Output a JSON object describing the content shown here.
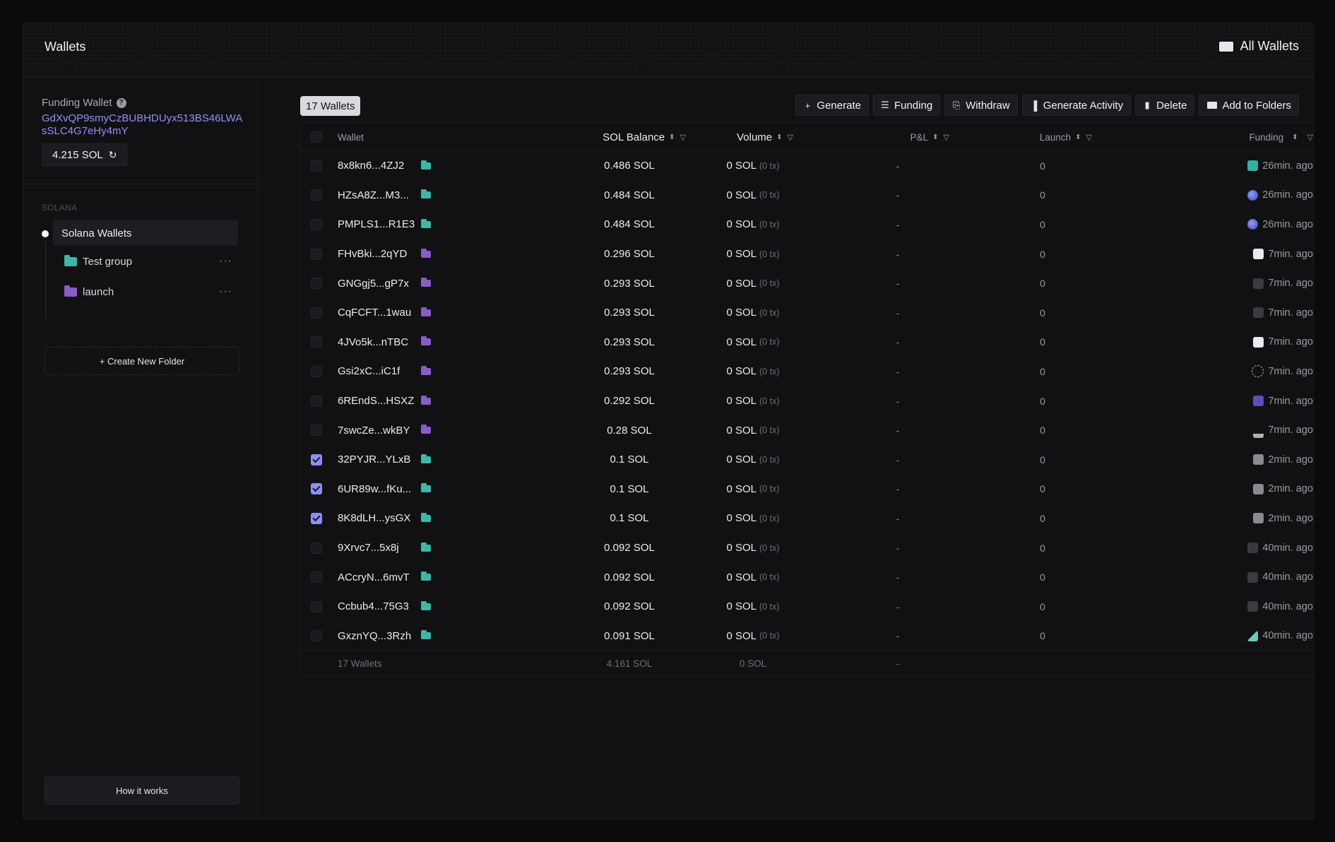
{
  "header": {
    "title": "Wallets",
    "all_wallets": "All Wallets"
  },
  "sidebar": {
    "funding_label": "Funding Wallet",
    "funding_address": "GdXvQP9smyCzBUBHDUyx513BS46LWAsSLC4G7eHy4mY",
    "funding_balance": "4.215 SOL",
    "section_label": "SOLANA",
    "active_group": "Solana Wallets",
    "folders": [
      {
        "label": "Test group",
        "color": "#3fb6a8"
      },
      {
        "label": "launch",
        "color": "#8b5cc6"
      }
    ],
    "create_folder": "+ Create New Folder",
    "how_it_works": "How it works"
  },
  "toolbar": {
    "count": "17 Wallets",
    "buttons": [
      "Generate",
      "Funding",
      "Withdraw",
      "Generate Activity",
      "Delete",
      "Add to Folders"
    ]
  },
  "table": {
    "headers": {
      "wallet": "Wallet",
      "balance": "SOL Balance",
      "volume": "Volume",
      "pnl": "P&L",
      "launch": "Launch",
      "funding": "Funding"
    },
    "rows": [
      {
        "wallet": "8x8kn6...4ZJ2",
        "folder": "teal",
        "balance": "0.486 SOL",
        "volume": "0 SOL",
        "tx": "(0 tx)",
        "pnl": "-",
        "launch": "0",
        "funding": "26min. ago",
        "fund_icon": "k-logo-icon",
        "checked": false
      },
      {
        "wallet": "HZsA8Z...M3...",
        "folder": "teal",
        "balance": "0.484 SOL",
        "volume": "0 SOL",
        "tx": "(0 tx)",
        "pnl": "-",
        "launch": "0",
        "funding": "26min. ago",
        "fund_icon": "globe-logo-icon",
        "checked": false
      },
      {
        "wallet": "PMPLS1...R1E3",
        "folder": "teal",
        "balance": "0.484 SOL",
        "volume": "0 SOL",
        "tx": "(0 tx)",
        "pnl": "-",
        "launch": "0",
        "funding": "26min. ago",
        "fund_icon": "globe-logo-icon",
        "checked": false
      },
      {
        "wallet": "FHvBki...2qYD",
        "folder": "purple",
        "balance": "0.296 SOL",
        "volume": "0 SOL",
        "tx": "(0 tx)",
        "pnl": "-",
        "launch": "0",
        "funding": "7min. ago",
        "fund_icon": "rocket-logo-icon",
        "checked": false
      },
      {
        "wallet": "GNGgj5...gP7x",
        "folder": "purple",
        "balance": "0.293 SOL",
        "volume": "0 SOL",
        "tx": "(0 tx)",
        "pnl": "-",
        "launch": "0",
        "funding": "7min. ago",
        "fund_icon": "card-logo-icon",
        "checked": false
      },
      {
        "wallet": "CqFCFT...1wau",
        "folder": "purple",
        "balance": "0.293 SOL",
        "volume": "0 SOL",
        "tx": "(0 tx)",
        "pnl": "-",
        "launch": "0",
        "funding": "7min. ago",
        "fund_icon": "card-logo-icon",
        "checked": false
      },
      {
        "wallet": "4JVo5k...nTBC",
        "folder": "purple",
        "balance": "0.293 SOL",
        "volume": "0 SOL",
        "tx": "(0 tx)",
        "pnl": "-",
        "launch": "0",
        "funding": "7min. ago",
        "fund_icon": "rocket-logo-icon",
        "checked": false
      },
      {
        "wallet": "Gsi2xC...iC1f",
        "folder": "purple",
        "balance": "0.293 SOL",
        "volume": "0 SOL",
        "tx": "(0 tx)",
        "pnl": "-",
        "launch": "0",
        "funding": "7min. ago",
        "fund_icon": "sparkle-logo-icon",
        "checked": false
      },
      {
        "wallet": "6REndS...HSXZ",
        "folder": "purple",
        "balance": "0.292 SOL",
        "volume": "0 SOL",
        "tx": "(0 tx)",
        "pnl": "-",
        "launch": "0",
        "funding": "7min. ago",
        "fund_icon": "gem-logo-icon",
        "checked": false
      },
      {
        "wallet": "7swcZe...wkBY",
        "folder": "purple",
        "balance": "0.28 SOL",
        "volume": "0 SOL",
        "tx": "(0 tx)",
        "pnl": "-",
        "launch": "0",
        "funding": "7min. ago",
        "fund_icon": "crown-logo-icon",
        "checked": false
      },
      {
        "wallet": "32PYJR...YLxB",
        "folder": "teal",
        "balance": "0.1 SOL",
        "volume": "0 SOL",
        "tx": "(0 tx)",
        "pnl": "-",
        "launch": "0",
        "funding": "2min. ago",
        "fund_icon": "wallet-logo-icon",
        "checked": true
      },
      {
        "wallet": "6UR89w...fKu...",
        "folder": "teal",
        "balance": "0.1 SOL",
        "volume": "0 SOL",
        "tx": "(0 tx)",
        "pnl": "-",
        "launch": "0",
        "funding": "2min. ago",
        "fund_icon": "wallet-logo-icon",
        "checked": true
      },
      {
        "wallet": "8K8dLH...ysGX",
        "folder": "teal",
        "balance": "0.1 SOL",
        "volume": "0 SOL",
        "tx": "(0 tx)",
        "pnl": "-",
        "launch": "0",
        "funding": "2min. ago",
        "fund_icon": "wallet-logo-icon",
        "checked": true
      },
      {
        "wallet": "9Xrvc7...5x8j",
        "folder": "teal",
        "balance": "0.092 SOL",
        "volume": "0 SOL",
        "tx": "(0 tx)",
        "pnl": "-",
        "launch": "0",
        "funding": "40min. ago",
        "fund_icon": "card-logo-icon",
        "checked": false
      },
      {
        "wallet": "ACcryN...6mvT",
        "folder": "teal",
        "balance": "0.092 SOL",
        "volume": "0 SOL",
        "tx": "(0 tx)",
        "pnl": "-",
        "launch": "0",
        "funding": "40min. ago",
        "fund_icon": "card-logo-icon",
        "checked": false
      },
      {
        "wallet": "Ccbub4...75G3",
        "folder": "teal",
        "balance": "0.092 SOL",
        "volume": "0 SOL",
        "tx": "(0 tx)",
        "pnl": "-",
        "launch": "0",
        "funding": "40min. ago",
        "fund_icon": "card-logo-icon",
        "checked": false
      },
      {
        "wallet": "GxznYQ...3Rzh",
        "folder": "teal",
        "balance": "0.091 SOL",
        "volume": "0 SOL",
        "tx": "(0 tx)",
        "pnl": "-",
        "launch": "0",
        "funding": "40min. ago",
        "fund_icon": "mountain-logo-icon",
        "checked": false
      }
    ],
    "footer": {
      "wallet": "17 Wallets",
      "balance": "4.161 SOL",
      "volume": "0 SOL",
      "pnl": "-"
    }
  },
  "colors": {
    "teal": "#3fb6a8",
    "purple": "#8b5cc6",
    "accent": "#8b8ff5"
  }
}
